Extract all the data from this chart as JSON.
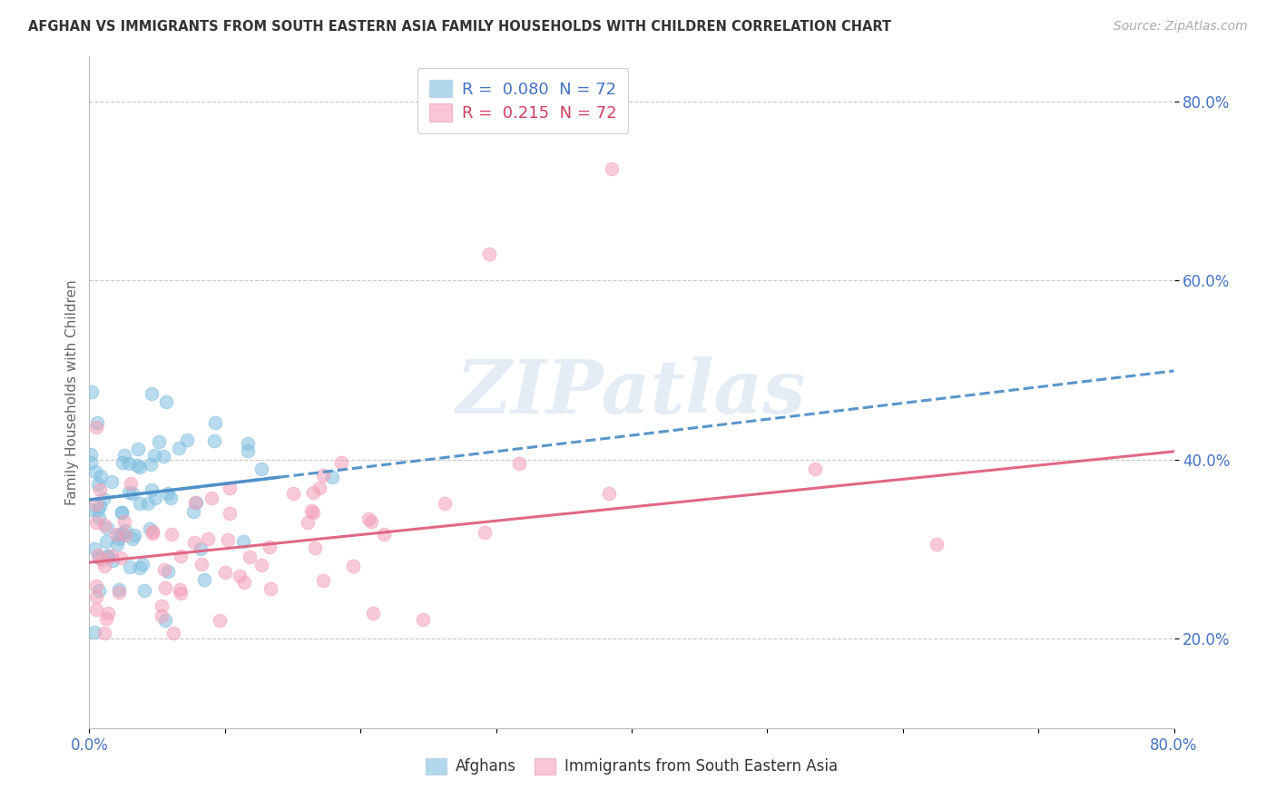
{
  "title": "AFGHAN VS IMMIGRANTS FROM SOUTH EASTERN ASIA FAMILY HOUSEHOLDS WITH CHILDREN CORRELATION CHART",
  "source": "Source: ZipAtlas.com",
  "ylabel": "Family Households with Children",
  "xlim": [
    0.0,
    0.8
  ],
  "ylim": [
    0.1,
    0.85
  ],
  "xtick_vals": [
    0.0,
    0.1,
    0.2,
    0.3,
    0.4,
    0.5,
    0.6,
    0.7,
    0.8
  ],
  "xticklabels": [
    "0.0%",
    "",
    "",
    "",
    "",
    "",
    "",
    "",
    "80.0%"
  ],
  "ytick_vals": [
    0.2,
    0.4,
    0.6,
    0.8
  ],
  "ytick_labels": [
    "20.0%",
    "40.0%",
    "60.0%",
    "80.0%"
  ],
  "watermark": "ZIPatlas",
  "blue_color": "#7fbfdf",
  "pink_color": "#f4a0b8",
  "blue_line_color": "#5090c8",
  "pink_line_color": "#e06080",
  "background_color": "#ffffff",
  "grid_color": "#c8c8c8",
  "legend_blue_r": "R =  0.080",
  "legend_blue_n": "N = 72",
  "legend_pink_r": "R =  0.215",
  "legend_pink_n": "N = 72",
  "afghan_seed": 12345,
  "sea_seed": 54321,
  "n": 72,
  "blue_intercept": 0.355,
  "blue_slope": 0.18,
  "pink_intercept": 0.285,
  "pink_slope": 0.155,
  "tick_color": "#4472c4"
}
